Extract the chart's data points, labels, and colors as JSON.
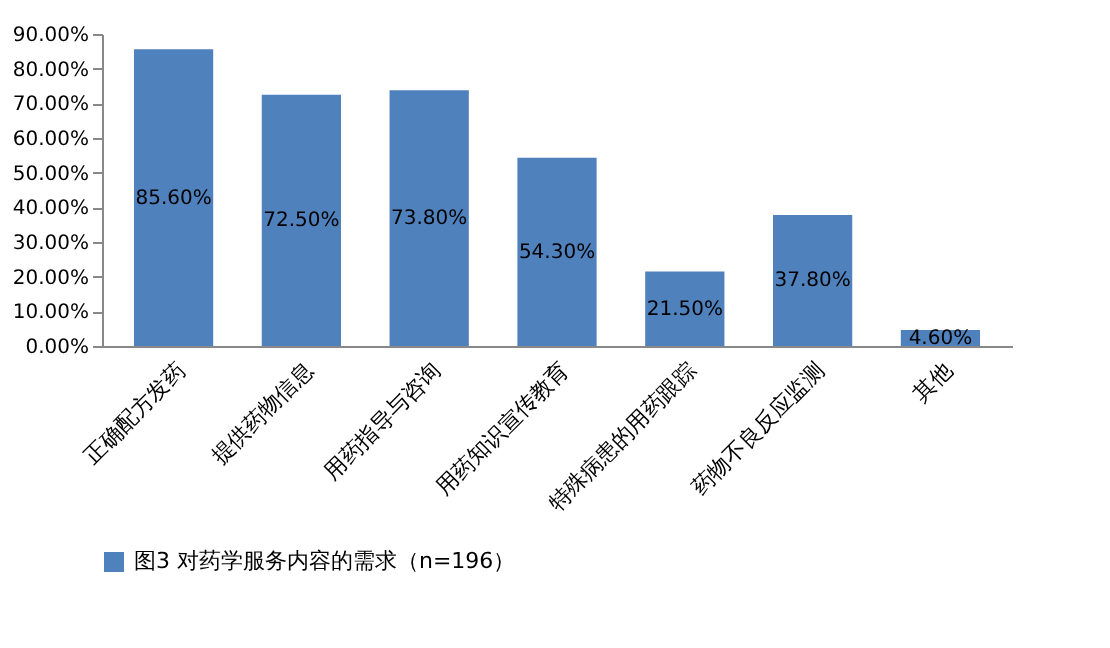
{
  "chart_data": {
    "type": "bar",
    "categories": [
      "正确配方发药",
      "提供药物信息",
      "用药指导与咨询",
      "用药知识宣传教育",
      "特殊病患的用药跟踪",
      "药物不良反应监测",
      "其他"
    ],
    "series": [
      {
        "name": "图3 对药学服务内容的需求（n=196）",
        "color": "#4f81bd",
        "values": [
          85.6,
          72.5,
          73.8,
          54.3,
          21.5,
          37.8,
          4.6
        ],
        "value_labels": [
          "85.60%",
          "72.50%",
          "73.80%",
          "54.30%",
          "21.50%",
          "37.80%",
          "4.60%"
        ]
      }
    ],
    "ylim": [
      0,
      90
    ],
    "yticks": [
      {
        "value": 0,
        "label": "0.00%"
      },
      {
        "value": 10,
        "label": "10.00%"
      },
      {
        "value": 20,
        "label": "20.00%"
      },
      {
        "value": 30,
        "label": "30.00%"
      },
      {
        "value": 40,
        "label": "40.00%"
      },
      {
        "value": 50,
        "label": "50.00%"
      },
      {
        "value": 60,
        "label": "60.00%"
      },
      {
        "value": 70,
        "label": "70.00%"
      },
      {
        "value": 80,
        "label": "80.00%"
      },
      {
        "value": 90,
        "label": "90.00%"
      }
    ],
    "grid": false,
    "legend": "bottom"
  }
}
